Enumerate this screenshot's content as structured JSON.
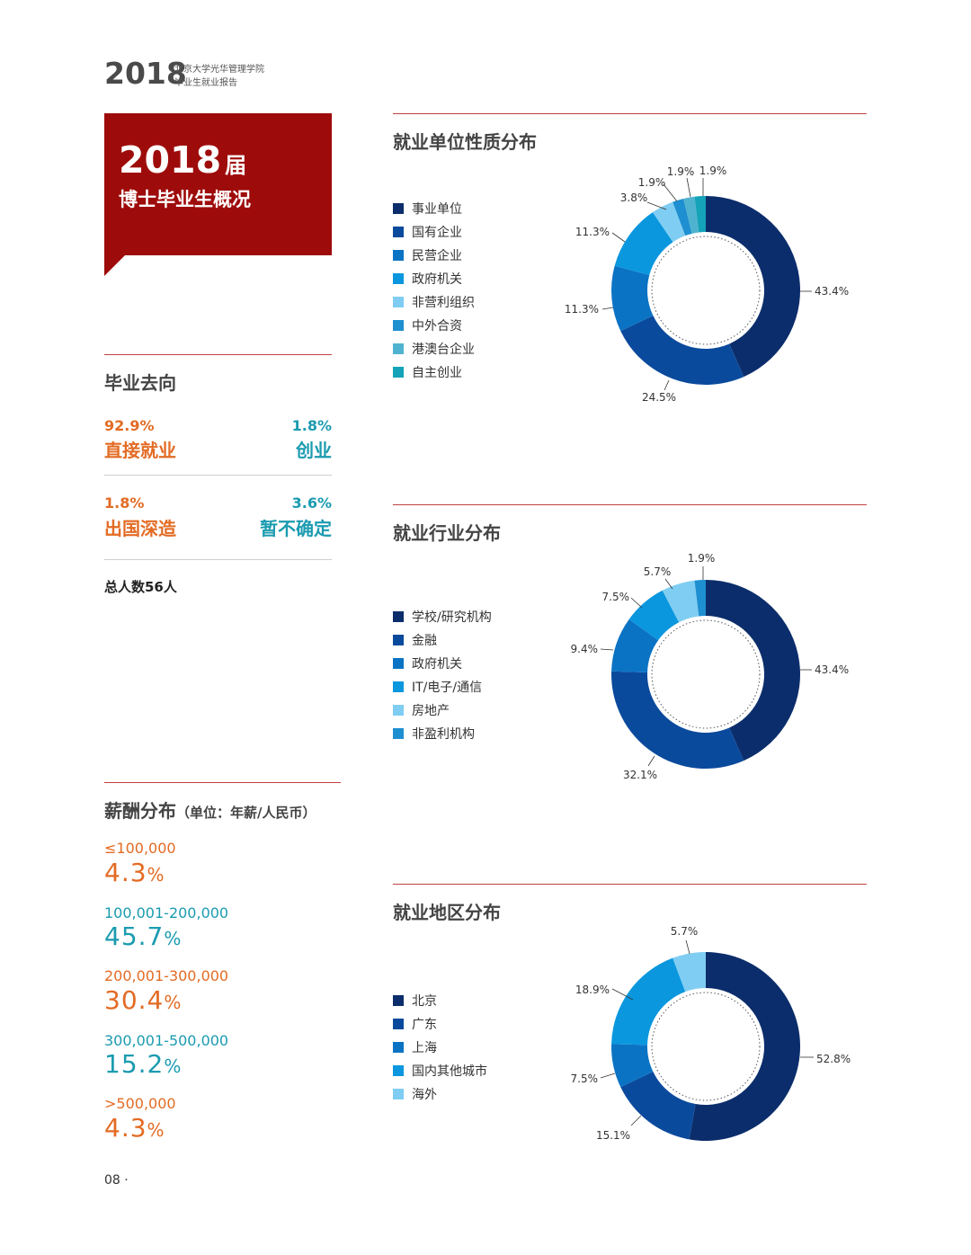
{
  "header": {
    "year": "2018",
    "line1": "北京大学光华管理学院",
    "line2": "毕业生就业报告"
  },
  "banner": {
    "year": "2018",
    "jie": "届",
    "subtitle": "博士毕业生概况"
  },
  "destination": {
    "title": "毕业去向",
    "items": [
      {
        "pct": "92.9%",
        "label": "直接就业",
        "color": "orange"
      },
      {
        "pct": "1.8%",
        "label": "创业",
        "color": "teal"
      },
      {
        "pct": "1.8%",
        "label": "出国深造",
        "color": "orange"
      },
      {
        "pct": "3.6%",
        "label": "暂不确定",
        "color": "teal"
      }
    ],
    "total": "总人数56人"
  },
  "salary": {
    "title": "薪酬分布",
    "unit": "（单位：年薪/人民币）",
    "items": [
      {
        "range": "≤100,000",
        "value": "4.3",
        "pct": "%"
      },
      {
        "range": "100,001-200,000",
        "value": "45.7",
        "pct": "%"
      },
      {
        "range": "200,001-300,000",
        "value": "30.4",
        "pct": "%"
      },
      {
        "range": "300,001-500,000",
        "value": "15.2",
        "pct": "%"
      },
      {
        "range": ">500,000",
        "value": "4.3",
        "pct": "%"
      }
    ]
  },
  "page": {
    "number": "08 ·"
  },
  "colors": {
    "c1": "#0b2d6b",
    "c2": "#0a4a9c",
    "c3": "#0b73c4",
    "c4": "#0a97de",
    "c5": "#7fcdf2",
    "c6": "#1e8fd0",
    "c7": "#4fb3cf",
    "c8": "#14a3b8",
    "red": "#9e0b0b",
    "orange": "#e36b24",
    "teal": "#1b9bb0"
  },
  "chart_data": [
    {
      "type": "pie",
      "title": "就业单位性质分布",
      "categories": [
        "事业单位",
        "国有企业",
        "民营企业",
        "政府机关",
        "非营利组织",
        "中外合资",
        "港澳台企业",
        "自主创业"
      ],
      "values": [
        43.4,
        24.5,
        11.3,
        11.3,
        3.8,
        1.9,
        1.9,
        1.9
      ],
      "labels": [
        "43.4%",
        "24.5%",
        "11.3%",
        "11.3%",
        "3.8%",
        "1.9%",
        "1.9%",
        "1.9%"
      ],
      "colors": [
        "#0b2d6b",
        "#0a4a9c",
        "#0b73c4",
        "#0a97de",
        "#7fcdf2",
        "#1e8fd0",
        "#4fb3cf",
        "#14a3b8"
      ]
    },
    {
      "type": "pie",
      "title": "就业行业分布",
      "categories": [
        "学校/研究机构",
        "金融",
        "政府机关",
        "IT/电子/通信",
        "房地产",
        "非盈利机构"
      ],
      "values": [
        43.4,
        32.1,
        9.4,
        7.5,
        5.7,
        1.9
      ],
      "labels": [
        "43.4%",
        "32.1%",
        "9.4%",
        "7.5%",
        "5.7%",
        "1.9%"
      ],
      "colors": [
        "#0b2d6b",
        "#0a4a9c",
        "#0b73c4",
        "#0a97de",
        "#7fcdf2",
        "#1e8fd0"
      ]
    },
    {
      "type": "pie",
      "title": "就业地区分布",
      "categories": [
        "北京",
        "广东",
        "上海",
        "国内其他城市",
        "海外"
      ],
      "values": [
        52.8,
        15.1,
        7.5,
        18.9,
        5.7
      ],
      "labels": [
        "52.8%",
        "15.1%",
        "7.5%",
        "18.9%",
        "5.7%"
      ],
      "colors": [
        "#0b2d6b",
        "#0a4a9c",
        "#0b73c4",
        "#0a97de",
        "#7fcdf2"
      ]
    }
  ]
}
